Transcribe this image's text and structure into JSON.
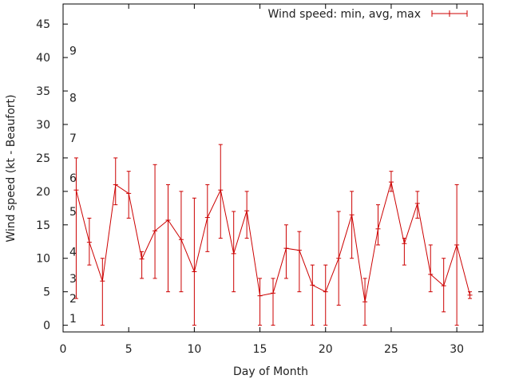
{
  "chart_data": {
    "type": "line",
    "title": "",
    "xlabel": "Day of Month",
    "ylabel": "Wind speed (kt - Beaufort)",
    "xlim": [
      0,
      32
    ],
    "ylim": [
      -1,
      48
    ],
    "xticks": [
      0,
      5,
      10,
      15,
      20,
      25,
      30
    ],
    "yticks": [
      0,
      5,
      10,
      15,
      20,
      25,
      30,
      35,
      40,
      45
    ],
    "grid": false,
    "legend": {
      "position": "top-right",
      "label": "Wind speed: min, avg, max"
    },
    "series": [
      {
        "name": "Wind speed: min, avg, max",
        "color": "#cc0000",
        "x": [
          1,
          2,
          3,
          4,
          5,
          6,
          7,
          8,
          9,
          10,
          11,
          12,
          13,
          14,
          15,
          16,
          17,
          18,
          19,
          20,
          21,
          22,
          23,
          24,
          25,
          26,
          27,
          28,
          29,
          30,
          31
        ],
        "avg": [
          20.2,
          12.4,
          6.6,
          21.0,
          19.7,
          9.9,
          14.1,
          15.7,
          12.8,
          8.0,
          16.1,
          20.2,
          10.7,
          17.1,
          4.4,
          4.8,
          11.5,
          11.2,
          6.0,
          5.0,
          10.0,
          16.5,
          3.5,
          14.4,
          21.4,
          12.2,
          18.2,
          7.6,
          5.9,
          12.0,
          4.5
        ],
        "min": [
          4,
          9,
          0,
          18,
          16,
          7,
          7,
          5,
          5,
          0,
          11,
          13,
          5,
          13,
          0,
          0,
          7,
          5,
          0,
          0,
          3,
          10,
          0,
          12,
          20,
          9,
          16,
          5,
          2,
          0,
          4
        ],
        "max": [
          25,
          16,
          10,
          25,
          23,
          11,
          24,
          21,
          20,
          19,
          21,
          27,
          17,
          20,
          7,
          7,
          15,
          14,
          9,
          9,
          17,
          20,
          7,
          18,
          23,
          13,
          20,
          12,
          10,
          21,
          5
        ]
      }
    ],
    "annotations": [
      {
        "text": "1",
        "y": 1
      },
      {
        "text": "2",
        "y": 4
      },
      {
        "text": "3",
        "y": 7
      },
      {
        "text": "4",
        "y": 11
      },
      {
        "text": "5",
        "y": 17
      },
      {
        "text": "6",
        "y": 22
      },
      {
        "text": "7",
        "y": 28
      },
      {
        "text": "8",
        "y": 34
      },
      {
        "text": "9",
        "y": 41
      }
    ]
  }
}
